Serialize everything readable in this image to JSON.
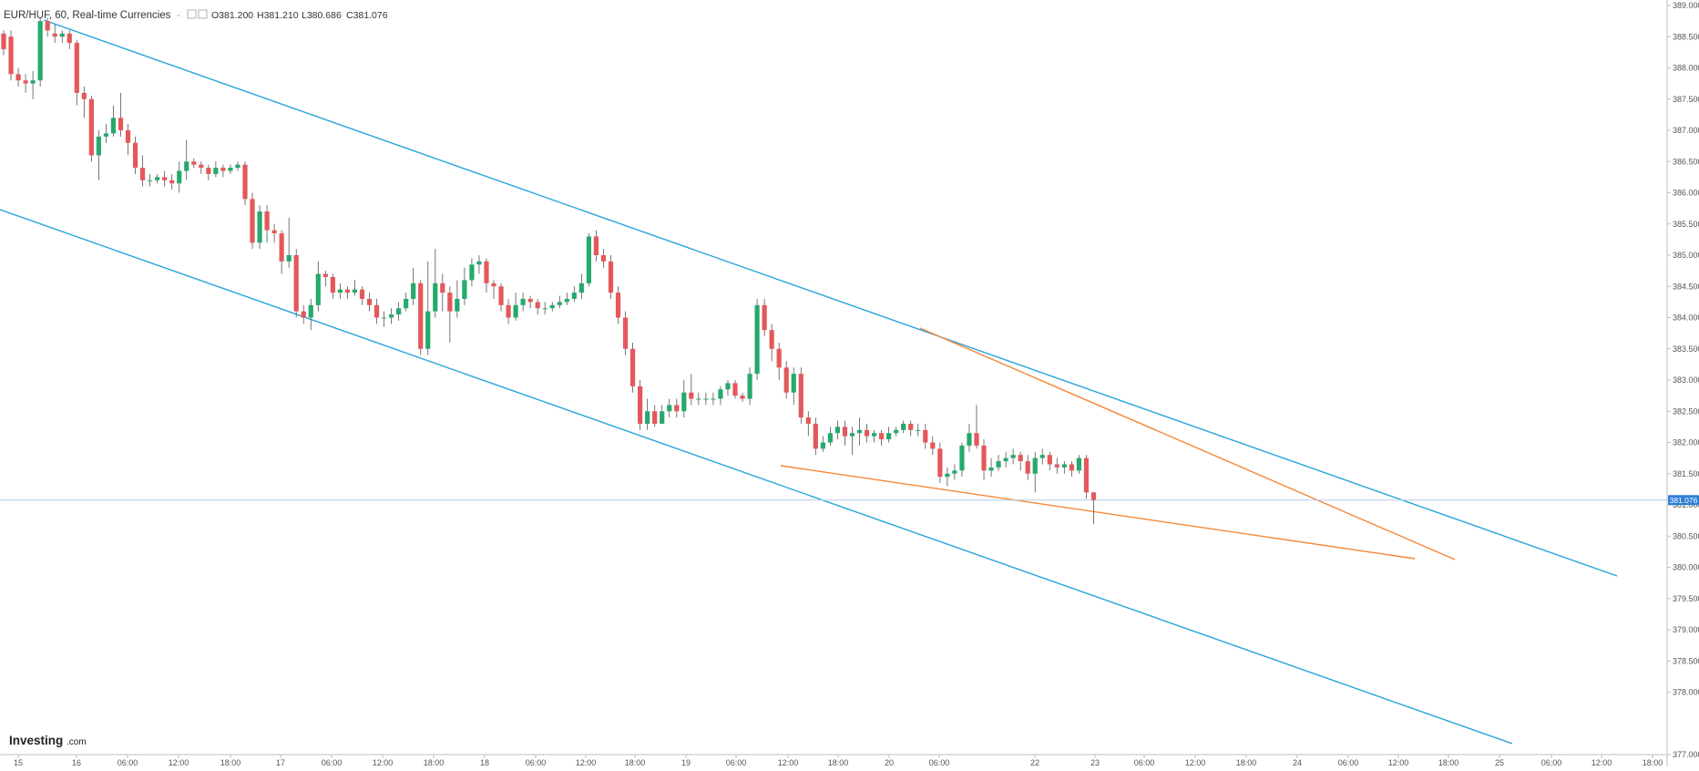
{
  "header": {
    "symbol": "EUR/HUF, 60, Real-time Currencies",
    "dash": "-",
    "open": "O381.200",
    "high": "H381.210",
    "low": "L380.686",
    "close": "C381.076"
  },
  "logo": {
    "main": "Investing",
    "suffix": ".com"
  },
  "colors": {
    "up": "#26a96c",
    "down": "#e4585b",
    "channel": "#29a3dc",
    "wedge": "#f58737",
    "price_line": "#b3cbe9",
    "price_badge": "#2e7fd6"
  },
  "chart_data": {
    "type": "candlestick",
    "title": "EUR/HUF, 60, Real-time Currencies",
    "ylim": [
      377.0,
      389.0
    ],
    "y_ticks": [
      "389.000",
      "388.500",
      "388.000",
      "387.500",
      "387.000",
      "386.500",
      "386.000",
      "385.500",
      "385.000",
      "384.500",
      "384.000",
      "383.500",
      "383.000",
      "382.500",
      "382.000",
      "381.500",
      "381.000",
      "380.500",
      "380.000",
      "379.500",
      "379.000",
      "378.500",
      "378.000",
      "377.000"
    ],
    "x_ticks": [
      "15",
      "16",
      "06:00",
      "12:00",
      "18:00",
      "17",
      "06:00",
      "12:00",
      "18:00",
      "18",
      "06:00",
      "12:00",
      "18:00",
      "19",
      "06:00",
      "12:00",
      "18:00",
      "20",
      "06:00",
      "22",
      "23",
      "06:00",
      "12:00",
      "18:00",
      "24",
      "06:00",
      "12:00",
      "18:00",
      "25",
      "06:00",
      "12:00",
      "18:00"
    ],
    "last_price": "381.076",
    "candles": [
      [
        388.55,
        388.3,
        388.6,
        388.2
      ],
      [
        388.5,
        387.9,
        388.6,
        387.8
      ],
      [
        387.9,
        387.8,
        388.0,
        387.7
      ],
      [
        387.8,
        387.75,
        387.9,
        387.6
      ],
      [
        387.75,
        387.8,
        387.95,
        387.5
      ],
      [
        387.8,
        388.75,
        388.8,
        387.7
      ],
      [
        388.75,
        388.6,
        388.8,
        388.5
      ],
      [
        388.55,
        388.5,
        388.7,
        388.4
      ],
      [
        388.5,
        388.55,
        388.6,
        388.4
      ],
      [
        388.55,
        388.4,
        388.6,
        388.3
      ],
      [
        388.4,
        387.6,
        388.45,
        387.4
      ],
      [
        387.6,
        387.5,
        387.7,
        387.2
      ],
      [
        387.5,
        386.6,
        387.55,
        386.5
      ],
      [
        386.6,
        386.9,
        387.0,
        386.2
      ],
      [
        386.9,
        386.95,
        387.1,
        386.8
      ],
      [
        386.95,
        387.2,
        387.4,
        386.9
      ],
      [
        387.2,
        387.0,
        387.6,
        386.9
      ],
      [
        387.0,
        386.8,
        387.1,
        386.6
      ],
      [
        386.8,
        386.4,
        386.9,
        386.3
      ],
      [
        386.4,
        386.2,
        386.6,
        386.1
      ],
      [
        386.2,
        386.2,
        386.3,
        386.1
      ],
      [
        386.2,
        386.25,
        386.3,
        386.15
      ],
      [
        386.25,
        386.2,
        386.35,
        386.1
      ],
      [
        386.2,
        386.15,
        386.3,
        386.05
      ],
      [
        386.15,
        386.35,
        386.5,
        386.0
      ],
      [
        386.35,
        386.5,
        386.85,
        386.2
      ],
      [
        386.5,
        386.45,
        386.55,
        386.4
      ],
      [
        386.45,
        386.4,
        386.5,
        386.3
      ],
      [
        386.4,
        386.3,
        386.45,
        386.2
      ],
      [
        386.3,
        386.4,
        386.5,
        386.25
      ],
      [
        386.4,
        386.35,
        386.45,
        386.25
      ],
      [
        386.35,
        386.4,
        386.45,
        386.3
      ],
      [
        386.4,
        386.45,
        386.5,
        386.35
      ],
      [
        386.45,
        385.9,
        386.5,
        385.8
      ],
      [
        385.9,
        385.2,
        386.0,
        385.1
      ],
      [
        385.2,
        385.7,
        385.8,
        385.1
      ],
      [
        385.7,
        385.4,
        385.8,
        385.2
      ],
      [
        385.4,
        385.35,
        385.5,
        385.2
      ],
      [
        385.35,
        384.9,
        385.4,
        384.7
      ],
      [
        384.9,
        385.0,
        385.6,
        384.8
      ],
      [
        385.0,
        384.1,
        385.1,
        384.0
      ],
      [
        384.1,
        384.0,
        384.2,
        383.9
      ],
      [
        384.0,
        384.2,
        384.3,
        383.8
      ],
      [
        384.2,
        384.7,
        384.9,
        384.1
      ],
      [
        384.7,
        384.65,
        384.75,
        384.5
      ],
      [
        384.65,
        384.4,
        384.7,
        384.3
      ],
      [
        384.4,
        384.45,
        384.55,
        384.3
      ],
      [
        384.45,
        384.4,
        384.5,
        384.3
      ],
      [
        384.4,
        384.45,
        384.6,
        384.35
      ],
      [
        384.45,
        384.3,
        384.5,
        384.2
      ],
      [
        384.3,
        384.2,
        384.4,
        384.1
      ],
      [
        384.2,
        384.0,
        384.3,
        383.9
      ],
      [
        384.0,
        384.0,
        384.1,
        383.85
      ],
      [
        384.0,
        384.05,
        384.15,
        383.9
      ],
      [
        384.05,
        384.15,
        384.25,
        383.95
      ],
      [
        384.15,
        384.3,
        384.4,
        384.1
      ],
      [
        384.3,
        384.55,
        384.8,
        384.2
      ],
      [
        384.55,
        383.5,
        384.6,
        383.4
      ],
      [
        383.5,
        384.1,
        384.9,
        383.4
      ],
      [
        384.1,
        384.55,
        385.1,
        384.0
      ],
      [
        384.55,
        384.4,
        384.7,
        384.1
      ],
      [
        384.4,
        384.1,
        384.5,
        383.6
      ],
      [
        384.1,
        384.3,
        384.6,
        384.0
      ],
      [
        384.3,
        384.6,
        384.8,
        384.2
      ],
      [
        384.6,
        384.85,
        384.95,
        384.5
      ],
      [
        384.85,
        384.9,
        385.0,
        384.7
      ],
      [
        384.9,
        384.55,
        384.95,
        384.4
      ],
      [
        384.55,
        384.5,
        384.6,
        384.3
      ],
      [
        384.5,
        384.2,
        384.55,
        384.1
      ],
      [
        384.2,
        384.0,
        384.3,
        383.9
      ],
      [
        384.0,
        384.2,
        384.4,
        383.95
      ],
      [
        384.2,
        384.3,
        384.4,
        384.1
      ],
      [
        384.3,
        384.25,
        384.35,
        384.15
      ],
      [
        384.25,
        384.15,
        384.3,
        384.05
      ],
      [
        384.15,
        384.15,
        384.25,
        384.05
      ],
      [
        384.15,
        384.2,
        384.25,
        384.1
      ],
      [
        384.2,
        384.25,
        384.35,
        384.15
      ],
      [
        384.25,
        384.3,
        384.4,
        384.2
      ],
      [
        384.3,
        384.4,
        384.5,
        384.25
      ],
      [
        384.4,
        384.55,
        384.7,
        384.3
      ],
      [
        384.55,
        385.3,
        385.35,
        384.5
      ],
      [
        385.3,
        385.0,
        385.4,
        384.9
      ],
      [
        385.0,
        384.9,
        385.1,
        384.8
      ],
      [
        384.9,
        384.4,
        385.0,
        384.3
      ],
      [
        384.4,
        384.0,
        384.5,
        383.9
      ],
      [
        384.0,
        383.5,
        384.1,
        383.4
      ],
      [
        383.5,
        382.9,
        383.6,
        382.8
      ],
      [
        382.9,
        382.3,
        383.0,
        382.2
      ],
      [
        382.3,
        382.5,
        382.7,
        382.2
      ],
      [
        382.5,
        382.3,
        382.6,
        382.25
      ],
      [
        382.3,
        382.5,
        382.6,
        382.3
      ],
      [
        382.5,
        382.6,
        382.7,
        382.4
      ],
      [
        382.6,
        382.5,
        382.7,
        382.4
      ],
      [
        382.5,
        382.8,
        383.0,
        382.4
      ],
      [
        382.8,
        382.7,
        383.1,
        382.6
      ],
      [
        382.7,
        382.7,
        382.8,
        382.6
      ],
      [
        382.7,
        382.7,
        382.8,
        382.6
      ],
      [
        382.7,
        382.7,
        382.8,
        382.6
      ],
      [
        382.7,
        382.85,
        382.9,
        382.6
      ],
      [
        382.85,
        382.95,
        383.0,
        382.75
      ],
      [
        382.95,
        382.75,
        383.0,
        382.7
      ],
      [
        382.75,
        382.7,
        382.8,
        382.65
      ],
      [
        382.7,
        383.1,
        383.2,
        382.6
      ],
      [
        383.1,
        384.2,
        384.3,
        383.0
      ],
      [
        384.2,
        383.8,
        384.3,
        383.7
      ],
      [
        383.8,
        383.5,
        383.9,
        383.3
      ],
      [
        383.5,
        383.2,
        383.6,
        383.0
      ],
      [
        383.2,
        382.8,
        383.3,
        382.7
      ],
      [
        382.8,
        383.1,
        383.2,
        382.6
      ],
      [
        383.1,
        382.4,
        383.2,
        382.3
      ],
      [
        382.4,
        382.3,
        382.5,
        382.1
      ],
      [
        382.3,
        381.9,
        382.4,
        381.8
      ],
      [
        381.9,
        382.0,
        382.1,
        381.85
      ],
      [
        382.0,
        382.15,
        382.25,
        381.95
      ],
      [
        382.15,
        382.25,
        382.35,
        382.05
      ],
      [
        382.25,
        382.1,
        382.35,
        381.95
      ],
      [
        382.1,
        382.15,
        382.25,
        381.8
      ],
      [
        382.15,
        382.2,
        382.4,
        381.95
      ],
      [
        382.2,
        382.1,
        382.3,
        382.0
      ],
      [
        382.1,
        382.15,
        382.2,
        382.0
      ],
      [
        382.15,
        382.05,
        382.2,
        381.95
      ],
      [
        382.05,
        382.15,
        382.25,
        382.0
      ],
      [
        382.15,
        382.2,
        382.25,
        382.1
      ],
      [
        382.2,
        382.3,
        382.35,
        382.15
      ],
      [
        382.3,
        382.2,
        382.35,
        382.1
      ],
      [
        382.2,
        382.2,
        382.3,
        382.1
      ],
      [
        382.2,
        382.0,
        382.3,
        381.9
      ],
      [
        382.0,
        381.9,
        382.1,
        381.8
      ],
      [
        381.9,
        381.45,
        382.0,
        381.35
      ],
      [
        381.45,
        381.5,
        381.6,
        381.3
      ],
      [
        381.5,
        381.55,
        381.65,
        381.4
      ],
      [
        381.55,
        381.95,
        382.0,
        381.45
      ],
      [
        381.95,
        382.15,
        382.3,
        381.85
      ],
      [
        382.15,
        381.95,
        382.6,
        381.9
      ],
      [
        381.95,
        381.55,
        382.05,
        381.4
      ],
      [
        381.55,
        381.6,
        381.75,
        381.45
      ],
      [
        381.6,
        381.7,
        381.8,
        381.55
      ],
      [
        381.7,
        381.75,
        381.85,
        381.6
      ],
      [
        381.75,
        381.8,
        381.9,
        381.65
      ],
      [
        381.8,
        381.7,
        381.85,
        381.55
      ],
      [
        381.7,
        381.5,
        381.8,
        381.4
      ],
      [
        381.5,
        381.75,
        381.85,
        381.2
      ],
      [
        381.75,
        381.8,
        381.9,
        381.65
      ],
      [
        381.8,
        381.65,
        381.85,
        381.55
      ],
      [
        381.65,
        381.6,
        381.75,
        381.5
      ],
      [
        381.6,
        381.65,
        381.7,
        381.5
      ],
      [
        381.65,
        381.55,
        381.7,
        381.45
      ],
      [
        381.55,
        381.75,
        381.8,
        381.5
      ],
      [
        381.75,
        381.2,
        381.8,
        381.1
      ],
      [
        381.2,
        381.08,
        381.21,
        380.69
      ]
    ]
  }
}
